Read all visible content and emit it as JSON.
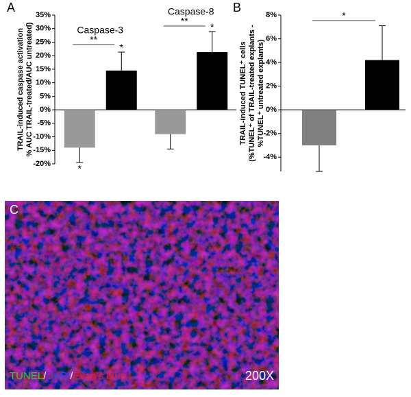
{
  "chart_data": [
    {
      "type": "bar",
      "panel_label": "A",
      "ylabel": [
        "TRAIL-induced caspase activation",
        "% AUC TRAIL-treated/AUC untreated)"
      ],
      "categories": [
        "Caspase-3",
        "Caspase-8"
      ],
      "series": [
        {
          "color": "#999999",
          "values": [
            -14,
            -9
          ],
          "errors": [
            5.5,
            5.5
          ],
          "significance": [
            "*",
            null
          ]
        },
        {
          "color": "#000000",
          "values": [
            14.5,
            21.3
          ],
          "errors": [
            6.8,
            7.6
          ],
          "significance": [
            "*",
            "*"
          ]
        }
      ],
      "comparisons": [
        "**",
        "**"
      ],
      "ylim": [
        -20,
        35
      ],
      "yticks": [
        {
          "value": -20,
          "label": "-20%"
        },
        {
          "value": -15,
          "label": "-15%"
        },
        {
          "value": -10,
          "label": "-10%"
        },
        {
          "value": -5,
          "label": "-5%"
        },
        {
          "value": 0,
          "label": "0%"
        },
        {
          "value": 5,
          "label": "5%"
        },
        {
          "value": 10,
          "label": "10%"
        },
        {
          "value": 15,
          "label": "15%"
        },
        {
          "value": 20,
          "label": "20%"
        },
        {
          "value": 25,
          "label": "25%"
        },
        {
          "value": 30,
          "label": "30%"
        },
        {
          "value": 35,
          "label": "35%"
        }
      ]
    },
    {
      "type": "bar",
      "panel_label": "B",
      "ylabel": [
        "TRAIL-induced TUNEL⁺ cells",
        "(%TUNEL⁺ of TRAIL-treated explants -",
        "%TUNEL⁺ untreated explants)"
      ],
      "categories": [
        null
      ],
      "series": [
        {
          "color": "#808080",
          "values": [
            -3
          ],
          "errors": [
            2.2
          ],
          "significance": [
            null
          ]
        },
        {
          "color": "#000000",
          "values": [
            4.2
          ],
          "errors": [
            2.9
          ],
          "significance": [
            null
          ]
        }
      ],
      "comparisons": [
        "*"
      ],
      "ylim": [
        -5.2,
        8
      ],
      "yticks": [
        {
          "value": -4,
          "label": "-4%"
        },
        {
          "value": -2,
          "label": "-2%"
        },
        {
          "value": 0,
          "label": "0%"
        },
        {
          "value": 2,
          "label": "2%"
        },
        {
          "value": 4,
          "label": "4%"
        },
        {
          "value": 6,
          "label": "6%"
        },
        {
          "value": 8,
          "label": "8%"
        }
      ]
    }
  ],
  "micrograph": {
    "panel_label": "C",
    "stain_labels": [
      "TUNEL",
      "/",
      "DAPI",
      "/",
      "Evan's blue"
    ],
    "magnification": "200X"
  }
}
